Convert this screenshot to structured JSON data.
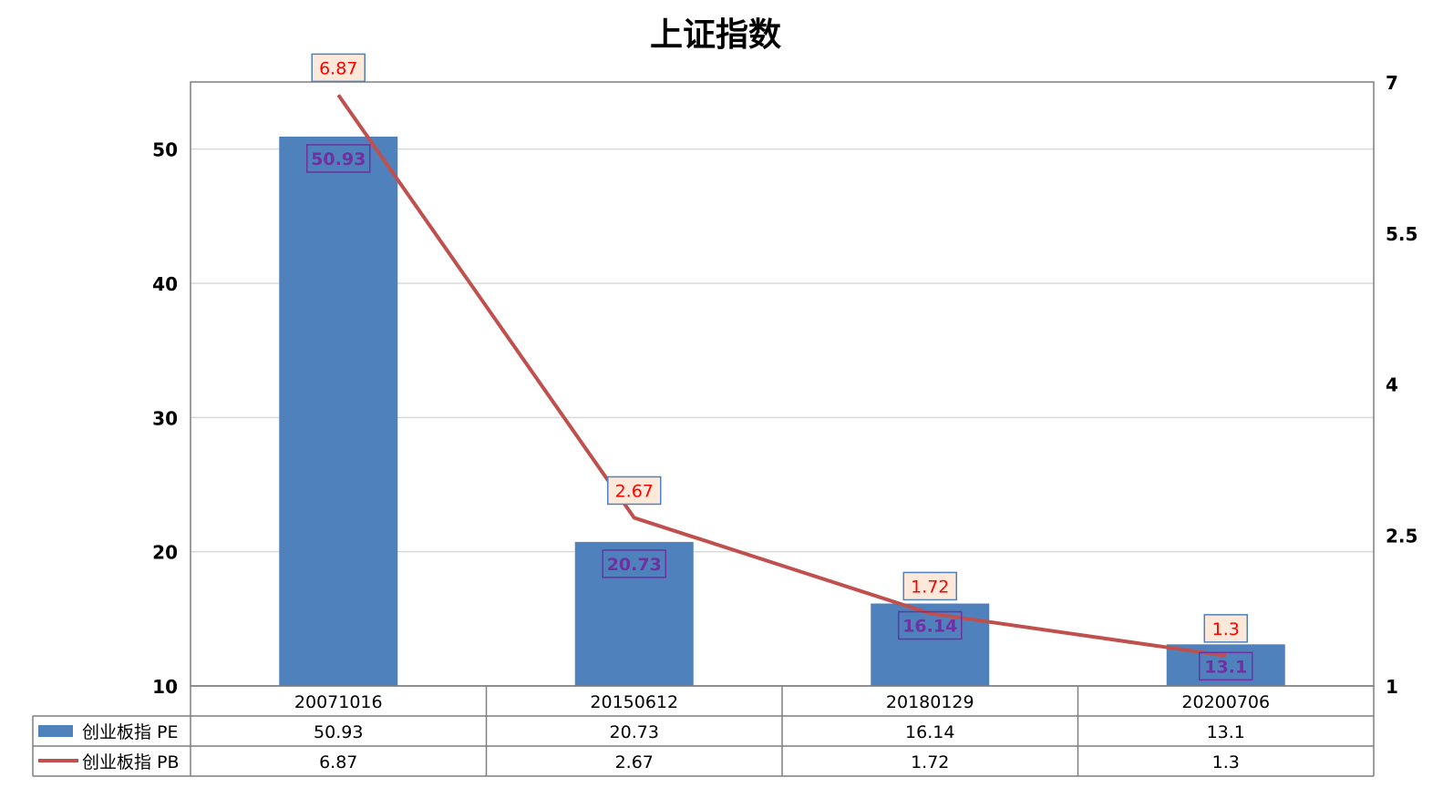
{
  "chart_data": {
    "type": "bar",
    "title": "上证指数",
    "categories": [
      "20071016",
      "20150612",
      "20180129",
      "20200706"
    ],
    "series": [
      {
        "name": "创业板指 PE",
        "type": "bar",
        "axis": "left",
        "values": [
          50.93,
          20.73,
          16.14,
          13.1
        ],
        "color": "#4f81bd",
        "labels": [
          "50.93",
          "20.73",
          "16.14",
          "13.1"
        ]
      },
      {
        "name": "创业板指 PB",
        "type": "line",
        "axis": "right",
        "values": [
          6.87,
          2.67,
          1.72,
          1.3
        ],
        "color": "#c0504d",
        "labels": [
          "6.87",
          "2.67",
          "1.72",
          "1.3"
        ]
      }
    ],
    "y_left": {
      "lim": [
        10,
        55
      ],
      "ticks": [
        "10",
        "20",
        "30",
        "40",
        "50"
      ]
    },
    "y_right": {
      "lim": [
        1,
        7
      ],
      "ticks": [
        "1",
        "2.5",
        "4",
        "5.5",
        "7"
      ]
    },
    "data_table": true,
    "grid": true
  },
  "colors": {
    "bar": "#4f81bd",
    "line": "#c0504d",
    "pe_label": "#7030a0",
    "pb_label": "#ff0000",
    "pb_label_bg": "#fde9d9"
  }
}
